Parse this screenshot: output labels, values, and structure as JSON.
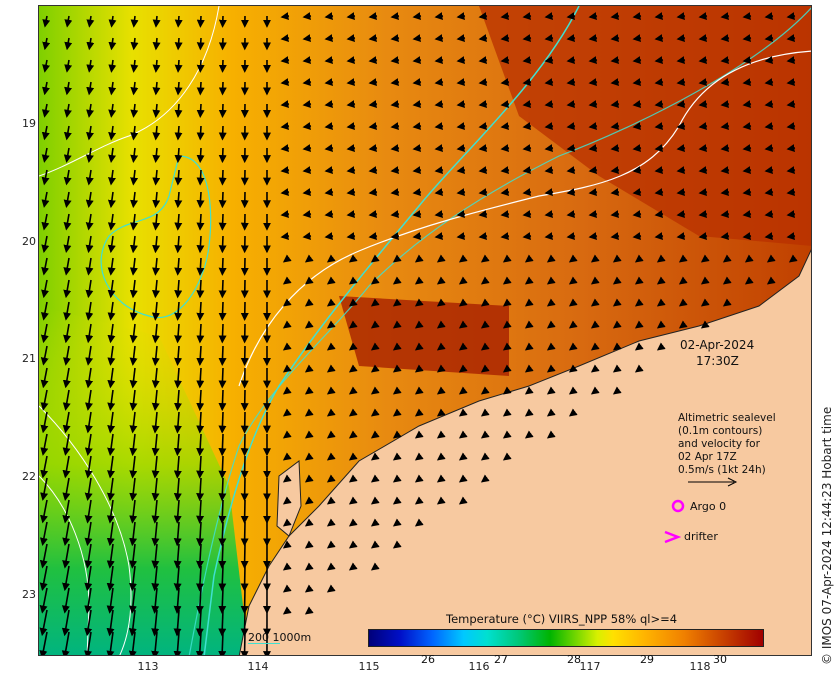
{
  "map": {
    "y_ticks": [
      "19",
      "20",
      "21",
      "22",
      "23"
    ],
    "x_ticks": [
      "113",
      "114",
      "115",
      "116",
      "117",
      "118"
    ],
    "timestamp_date": "02-Apr-2024",
    "timestamp_time": "17:30Z",
    "legend": {
      "line1": "Altimetric sealevel",
      "line2": "(0.1m contours)",
      "line3": "and velocity for",
      "line4": "02 Apr 17Z",
      "line5": "0.5m/s (1kt 24h)",
      "argo_label": "Argo 0",
      "drifter_label": "drifter"
    },
    "colorbar": {
      "title": "Temperature (°C) VIIRS_NPP 58% ql>=4",
      "ticks": [
        "26",
        "27",
        "28",
        "29",
        "30"
      ]
    },
    "scale_label": "200  1000m",
    "credit": "© IMOS 07-Apr-2024 12:44:23 Hobart time"
  },
  "colors": {
    "land": "#f7c9a0",
    "isobath": "#40e0d0",
    "contour": "#ffffff",
    "argo_marker": "#ff00ff",
    "drifter_marker": "#ff00ff"
  }
}
